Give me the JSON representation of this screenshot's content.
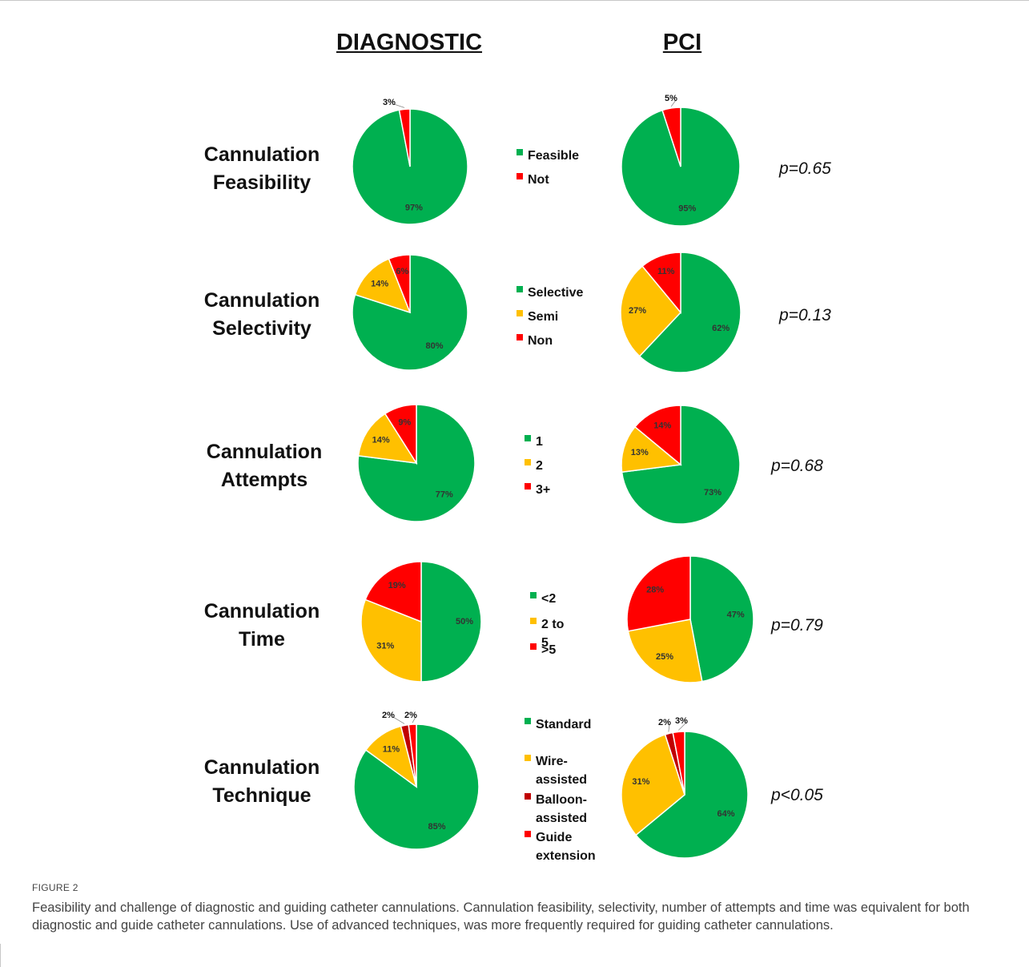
{
  "figure_label": "FIGURE 2",
  "caption": "Feasibility and challenge of diagnostic and guiding catheter cannulations. Cannulation feasibility, selectivity, number of attempts and time was equivalent for both diagnostic and guide catheter cannulations. Use of advanced techniques, was more frequently required for guiding catheter cannulations.",
  "columns": {
    "diagnostic": "DIAGNOSTIC",
    "pci": "PCI"
  },
  "colors": {
    "green": "#00b050",
    "yellow": "#ffc000",
    "darkred": "#c00000",
    "red": "#ff0000"
  },
  "chart_data": [
    {
      "type": "pie",
      "row_label": "Cannulation\nFeasibility",
      "legend": [
        "Feasible",
        "Not"
      ],
      "legend_colors": [
        "#00b050",
        "#ff0000"
      ],
      "diagnostic": {
        "categories": [
          "Feasible",
          "Not"
        ],
        "values": [
          97,
          3
        ],
        "labels": [
          "97%",
          "3%"
        ]
      },
      "pci": {
        "categories": [
          "Feasible",
          "Not"
        ],
        "values": [
          95,
          5
        ],
        "labels": [
          "95%",
          "5%"
        ]
      },
      "p_value": "p=0.65"
    },
    {
      "type": "pie",
      "row_label": "Cannulation\nSelectivity",
      "legend": [
        "Selective",
        "Semi",
        "Non"
      ],
      "legend_colors": [
        "#00b050",
        "#ffc000",
        "#ff0000"
      ],
      "diagnostic": {
        "categories": [
          "Selective",
          "Semi",
          "Non"
        ],
        "values": [
          80,
          14,
          6
        ],
        "labels": [
          "80%",
          "14%",
          "6%"
        ]
      },
      "pci": {
        "categories": [
          "Selective",
          "Semi",
          "Non"
        ],
        "values": [
          62,
          27,
          11
        ],
        "labels": [
          "62%",
          "27%",
          "11%"
        ]
      },
      "p_value": "p=0.13"
    },
    {
      "type": "pie",
      "row_label": "Cannulation\nAttempts",
      "legend": [
        "1",
        "2",
        "3+"
      ],
      "legend_colors": [
        "#00b050",
        "#ffc000",
        "#ff0000"
      ],
      "diagnostic": {
        "categories": [
          "1",
          "2",
          "3+"
        ],
        "values": [
          77,
          14,
          9
        ],
        "labels": [
          "77%",
          "14%",
          "9%"
        ]
      },
      "pci": {
        "categories": [
          "1",
          "2",
          "3+"
        ],
        "values": [
          73,
          13,
          14
        ],
        "labels": [
          "73%",
          "13%",
          "14%"
        ]
      },
      "p_value": "p=0.68"
    },
    {
      "type": "pie",
      "row_label": "Cannulation\nTime",
      "legend": [
        "<2",
        "2 to 5",
        ">5"
      ],
      "legend_colors": [
        "#00b050",
        "#ffc000",
        "#ff0000"
      ],
      "diagnostic": {
        "categories": [
          "<2",
          "2 to 5",
          ">5"
        ],
        "values": [
          50,
          31,
          19
        ],
        "labels": [
          "50%",
          "31%",
          "19%"
        ]
      },
      "pci": {
        "categories": [
          "<2",
          "2 to 5",
          ">5"
        ],
        "values": [
          47,
          25,
          28
        ],
        "labels": [
          "47%",
          "25%",
          "28%"
        ]
      },
      "p_value": "p=0.79"
    },
    {
      "type": "pie",
      "row_label": "Cannulation\nTechnique",
      "legend": [
        "Standard",
        "Wire-\nassisted",
        "Balloon-\nassisted",
        "Guide\nextension"
      ],
      "legend_colors": [
        "#00b050",
        "#ffc000",
        "#c00000",
        "#ff0000"
      ],
      "diagnostic": {
        "categories": [
          "Standard",
          "Wire-assisted",
          "Balloon-assisted",
          "Guide extension"
        ],
        "values": [
          85,
          11,
          2,
          2
        ],
        "labels": [
          "85%",
          "11%",
          "2%",
          "2%"
        ]
      },
      "pci": {
        "categories": [
          "Standard",
          "Wire-assisted",
          "Balloon-assisted",
          "Guide extension"
        ],
        "values": [
          64,
          31,
          2,
          3
        ],
        "labels": [
          "64%",
          "31%",
          "2%",
          "3%"
        ]
      },
      "p_value": "p<0.05"
    }
  ]
}
